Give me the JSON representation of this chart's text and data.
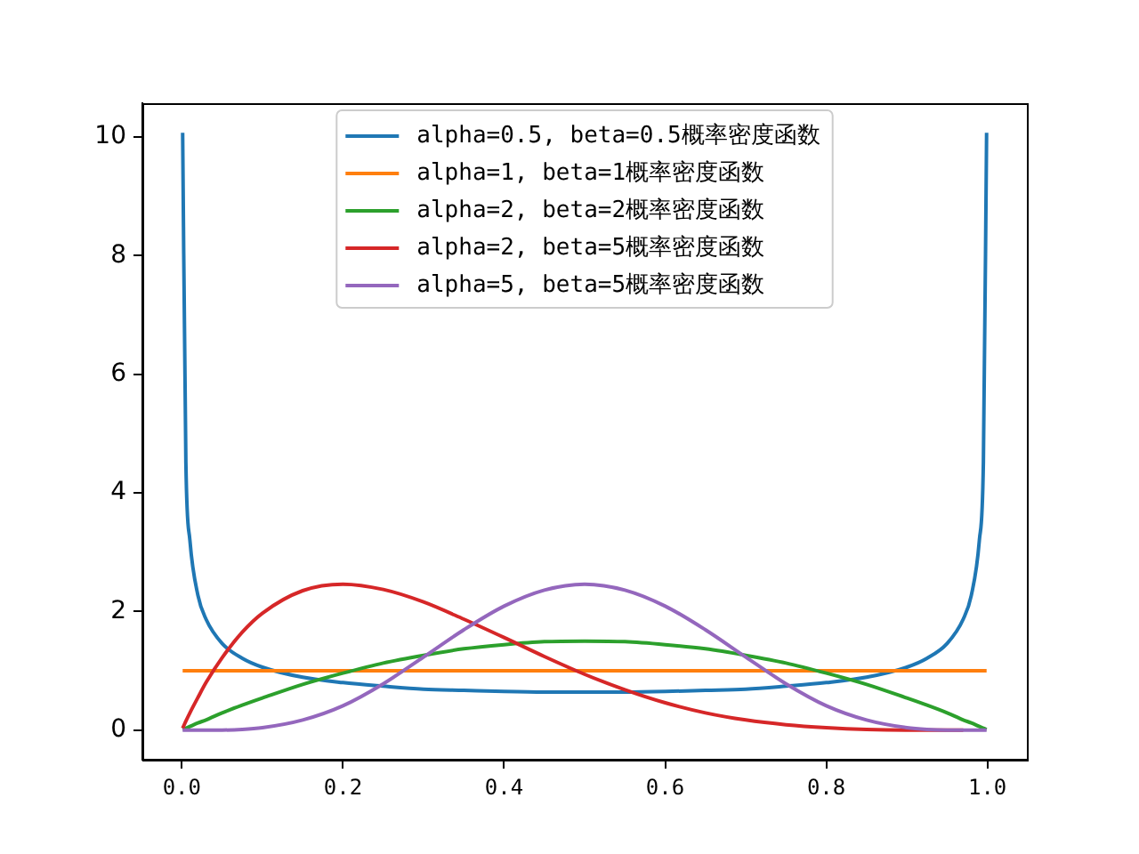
{
  "chart_data": {
    "type": "line",
    "x": [
      0.001,
      0.005,
      0.01,
      0.02,
      0.03,
      0.05,
      0.075,
      0.1,
      0.15,
      0.2,
      0.25,
      0.3,
      0.35,
      0.4,
      0.45,
      0.5,
      0.55,
      0.6,
      0.65,
      0.7,
      0.75,
      0.8,
      0.85,
      0.9,
      0.925,
      0.95,
      0.97,
      0.98,
      0.99,
      0.995,
      0.999
    ],
    "series": [
      {
        "name": "alpha=0.5, beta=0.5概率密度函数",
        "color": "#1f77b4",
        "values": [
          10.07,
          4.51,
          3.2,
          2.27,
          1.87,
          1.46,
          1.21,
          1.06,
          0.89,
          0.8,
          0.74,
          0.69,
          0.67,
          0.65,
          0.64,
          0.64,
          0.64,
          0.65,
          0.67,
          0.69,
          0.74,
          0.8,
          0.89,
          1.06,
          1.21,
          1.46,
          1.87,
          2.27,
          3.2,
          4.51,
          10.07
        ]
      },
      {
        "name": "alpha=1, beta=1概率密度函数",
        "color": "#ff7f0e",
        "values": [
          1,
          1,
          1,
          1,
          1,
          1,
          1,
          1,
          1,
          1,
          1,
          1,
          1,
          1,
          1,
          1,
          1,
          1,
          1,
          1,
          1,
          1,
          1,
          1,
          1,
          1,
          1,
          1,
          1,
          1,
          1
        ]
      },
      {
        "name": "alpha=2, beta=2概率密度函数",
        "color": "#2ca02c",
        "values": [
          0.01,
          0.03,
          0.06,
          0.12,
          0.17,
          0.29,
          0.42,
          0.54,
          0.77,
          0.96,
          1.13,
          1.26,
          1.37,
          1.44,
          1.49,
          1.5,
          1.49,
          1.44,
          1.37,
          1.26,
          1.13,
          0.96,
          0.77,
          0.54,
          0.42,
          0.29,
          0.17,
          0.12,
          0.06,
          0.03,
          0.01
        ]
      },
      {
        "name": "alpha=2, beta=5概率密度函数",
        "color": "#d62728",
        "values": [
          0.03,
          0.15,
          0.29,
          0.55,
          0.8,
          1.22,
          1.65,
          1.97,
          2.35,
          2.46,
          2.37,
          2.16,
          1.87,
          1.56,
          1.24,
          0.94,
          0.68,
          0.46,
          0.29,
          0.17,
          0.09,
          0.04,
          0.01,
          0,
          0,
          0,
          0,
          null,
          null,
          null,
          null
        ]
      },
      {
        "name": "alpha=5, beta=5概率密度函数",
        "color": "#9467bd",
        "values": [
          0,
          0,
          0,
          0,
          0,
          0,
          0.01,
          0.04,
          0.17,
          0.41,
          0.78,
          1.23,
          1.69,
          2.09,
          2.36,
          2.46,
          2.36,
          2.09,
          1.69,
          1.23,
          0.78,
          0.41,
          0.17,
          0.04,
          0.01,
          0,
          0,
          0,
          0,
          0,
          0
        ]
      }
    ],
    "xlim": [
      -0.049,
      1.049
    ],
    "ylim": [
      -0.5,
      10.57
    ],
    "xticks": [
      {
        "value": 0,
        "label": "0.0"
      },
      0.2,
      0.4,
      0.6,
      0.8,
      {
        "value": 1,
        "label": "1.0"
      }
    ],
    "yticks": [
      0,
      2,
      4,
      6,
      8,
      10
    ],
    "grid": false,
    "legend": "top"
  }
}
